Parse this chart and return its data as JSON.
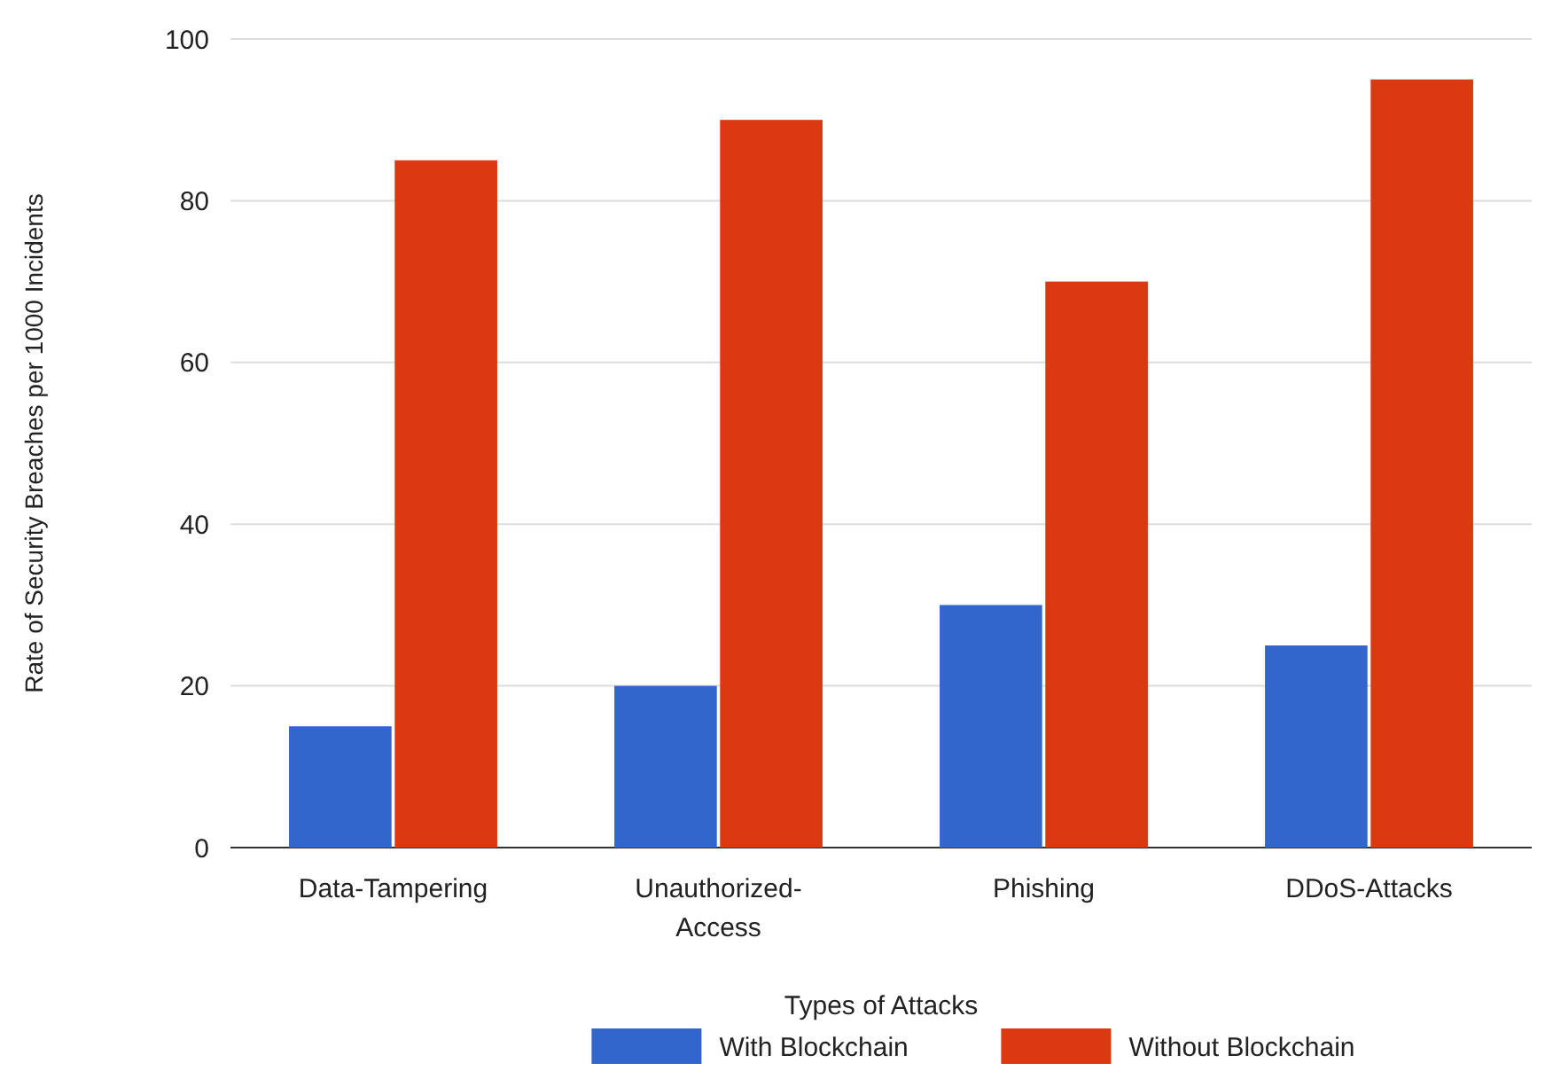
{
  "chart_data": {
    "type": "bar",
    "xlabel": "Types of Attacks",
    "ylabel": "Rate of Security Breaches per 1000 Incidents",
    "categories": [
      "Data-Tampering",
      "Unauthorized-Access",
      "Phishing",
      "DDoS-Attacks"
    ],
    "series": [
      {
        "name": "With Blockchain",
        "color": "#3366cc",
        "values": [
          15,
          20,
          30,
          25
        ]
      },
      {
        "name": "Without Blockchain",
        "color": "#dc3912",
        "values": [
          85,
          90,
          70,
          95
        ]
      }
    ],
    "ylim": [
      0,
      100
    ],
    "yticks": [
      0,
      20,
      40,
      60,
      80,
      100
    ],
    "grid": "y",
    "legend": "bottom"
  }
}
